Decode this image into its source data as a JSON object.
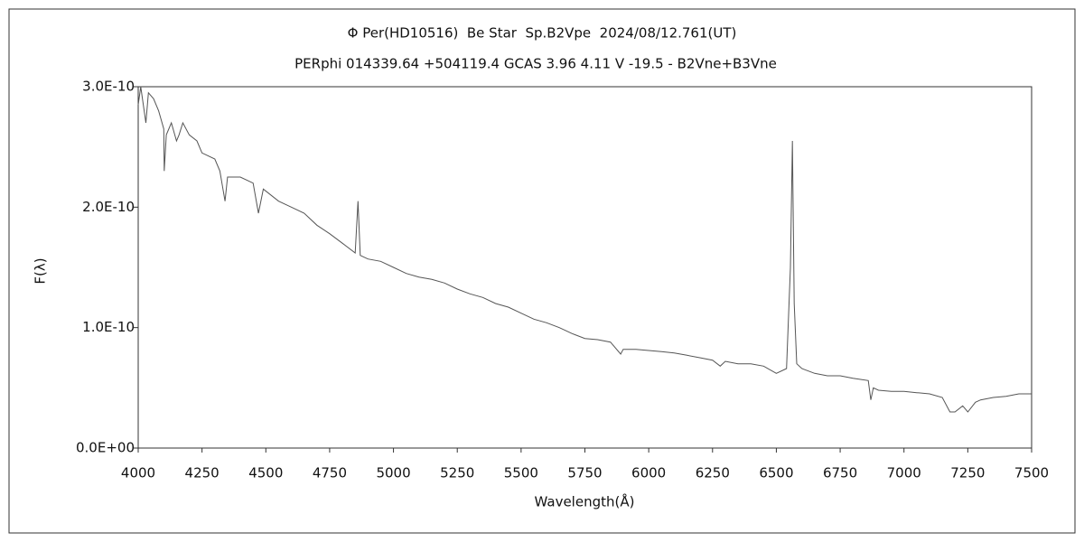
{
  "chart_data": {
    "type": "line",
    "title": "Φ Per(HD10516)  Be Star  Sp.B2Vpe  2024/08/12.761(UT)",
    "subtitle": "PERphi 014339.64 +504119.4 GCAS 3.96 4.11 V -19.5 - B2Vne+B3Vne",
    "xlabel": "Wavelength(Å)",
    "ylabel": "F(λ)",
    "xlim": [
      4000,
      7500
    ],
    "xticks": [
      4000,
      4250,
      4500,
      4750,
      5000,
      5250,
      5500,
      5750,
      6000,
      6250,
      6500,
      6750,
      7000,
      7250,
      7500
    ],
    "ylim": [
      0,
      3e-10
    ],
    "yticks": [
      {
        "value": 0,
        "label": "0.0E+00"
      },
      {
        "value": 1e-10,
        "label": "1.0E-10"
      },
      {
        "value": 2e-10,
        "label": "2.0E-10"
      },
      {
        "value": 3e-10,
        "label": "3.0E-10"
      }
    ],
    "grid": false,
    "x": [
      4000,
      4010,
      4030,
      4040,
      4060,
      4080,
      4100,
      4102,
      4110,
      4130,
      4150,
      4160,
      4175,
      4200,
      4230,
      4250,
      4300,
      4320,
      4340,
      4350,
      4400,
      4450,
      4471,
      4490,
      4550,
      4600,
      4650,
      4700,
      4750,
      4800,
      4850,
      4861,
      4870,
      4900,
      4950,
      5000,
      5050,
      5100,
      5150,
      5200,
      5250,
      5300,
      5350,
      5400,
      5450,
      5500,
      5550,
      5600,
      5650,
      5700,
      5750,
      5800,
      5850,
      5890,
      5900,
      5950,
      6000,
      6050,
      6100,
      6150,
      6200,
      6250,
      6280,
      6300,
      6350,
      6400,
      6450,
      6500,
      6540,
      6555,
      6563,
      6570,
      6580,
      6600,
      6650,
      6700,
      6750,
      6800,
      6860,
      6870,
      6880,
      6900,
      6950,
      7000,
      7050,
      7100,
      7150,
      7180,
      7200,
      7230,
      7250,
      7280,
      7300,
      7350,
      7400,
      7450,
      7500
    ],
    "series": [
      {
        "name": "F(λ)",
        "color": "#555555",
        "values": [
          2.85e-10,
          3e-10,
          2.7e-10,
          2.95e-10,
          2.9e-10,
          2.8e-10,
          2.65e-10,
          2.3e-10,
          2.6e-10,
          2.7e-10,
          2.55e-10,
          2.6e-10,
          2.7e-10,
          2.6e-10,
          2.55e-10,
          2.45e-10,
          2.4e-10,
          2.3e-10,
          2.05e-10,
          2.25e-10,
          2.25e-10,
          2.2e-10,
          1.95e-10,
          2.15e-10,
          2.05e-10,
          2e-10,
          1.95e-10,
          1.85e-10,
          1.78e-10,
          1.7e-10,
          1.62e-10,
          2.05e-10,
          1.6e-10,
          1.57e-10,
          1.55e-10,
          1.5e-10,
          1.45e-10,
          1.42e-10,
          1.4e-10,
          1.37e-10,
          1.32e-10,
          1.28e-10,
          1.25e-10,
          1.2e-10,
          1.17e-10,
          1.12e-10,
          1.07e-10,
          1.04e-10,
          1e-10,
          9.5e-11,
          9.1e-11,
          9e-11,
          8.8e-11,
          7.8e-11,
          8.2e-11,
          8.2e-11,
          8.1e-11,
          8e-11,
          7.9e-11,
          7.7e-11,
          7.5e-11,
          7.3e-11,
          6.8e-11,
          7.2e-11,
          7e-11,
          7e-11,
          6.8e-11,
          6.2e-11,
          6.6e-11,
          1.5e-10,
          2.55e-10,
          1.2e-10,
          7e-11,
          6.6e-11,
          6.2e-11,
          6e-11,
          6e-11,
          5.8e-11,
          5.6e-11,
          4e-11,
          5e-11,
          4.8e-11,
          4.7e-11,
          4.7e-11,
          4.6e-11,
          4.5e-11,
          4.2e-11,
          3e-11,
          3e-11,
          3.5e-11,
          3e-11,
          3.8e-11,
          4e-11,
          4.2e-11,
          4.3e-11,
          4.5e-11,
          4.5e-11
        ]
      }
    ]
  }
}
